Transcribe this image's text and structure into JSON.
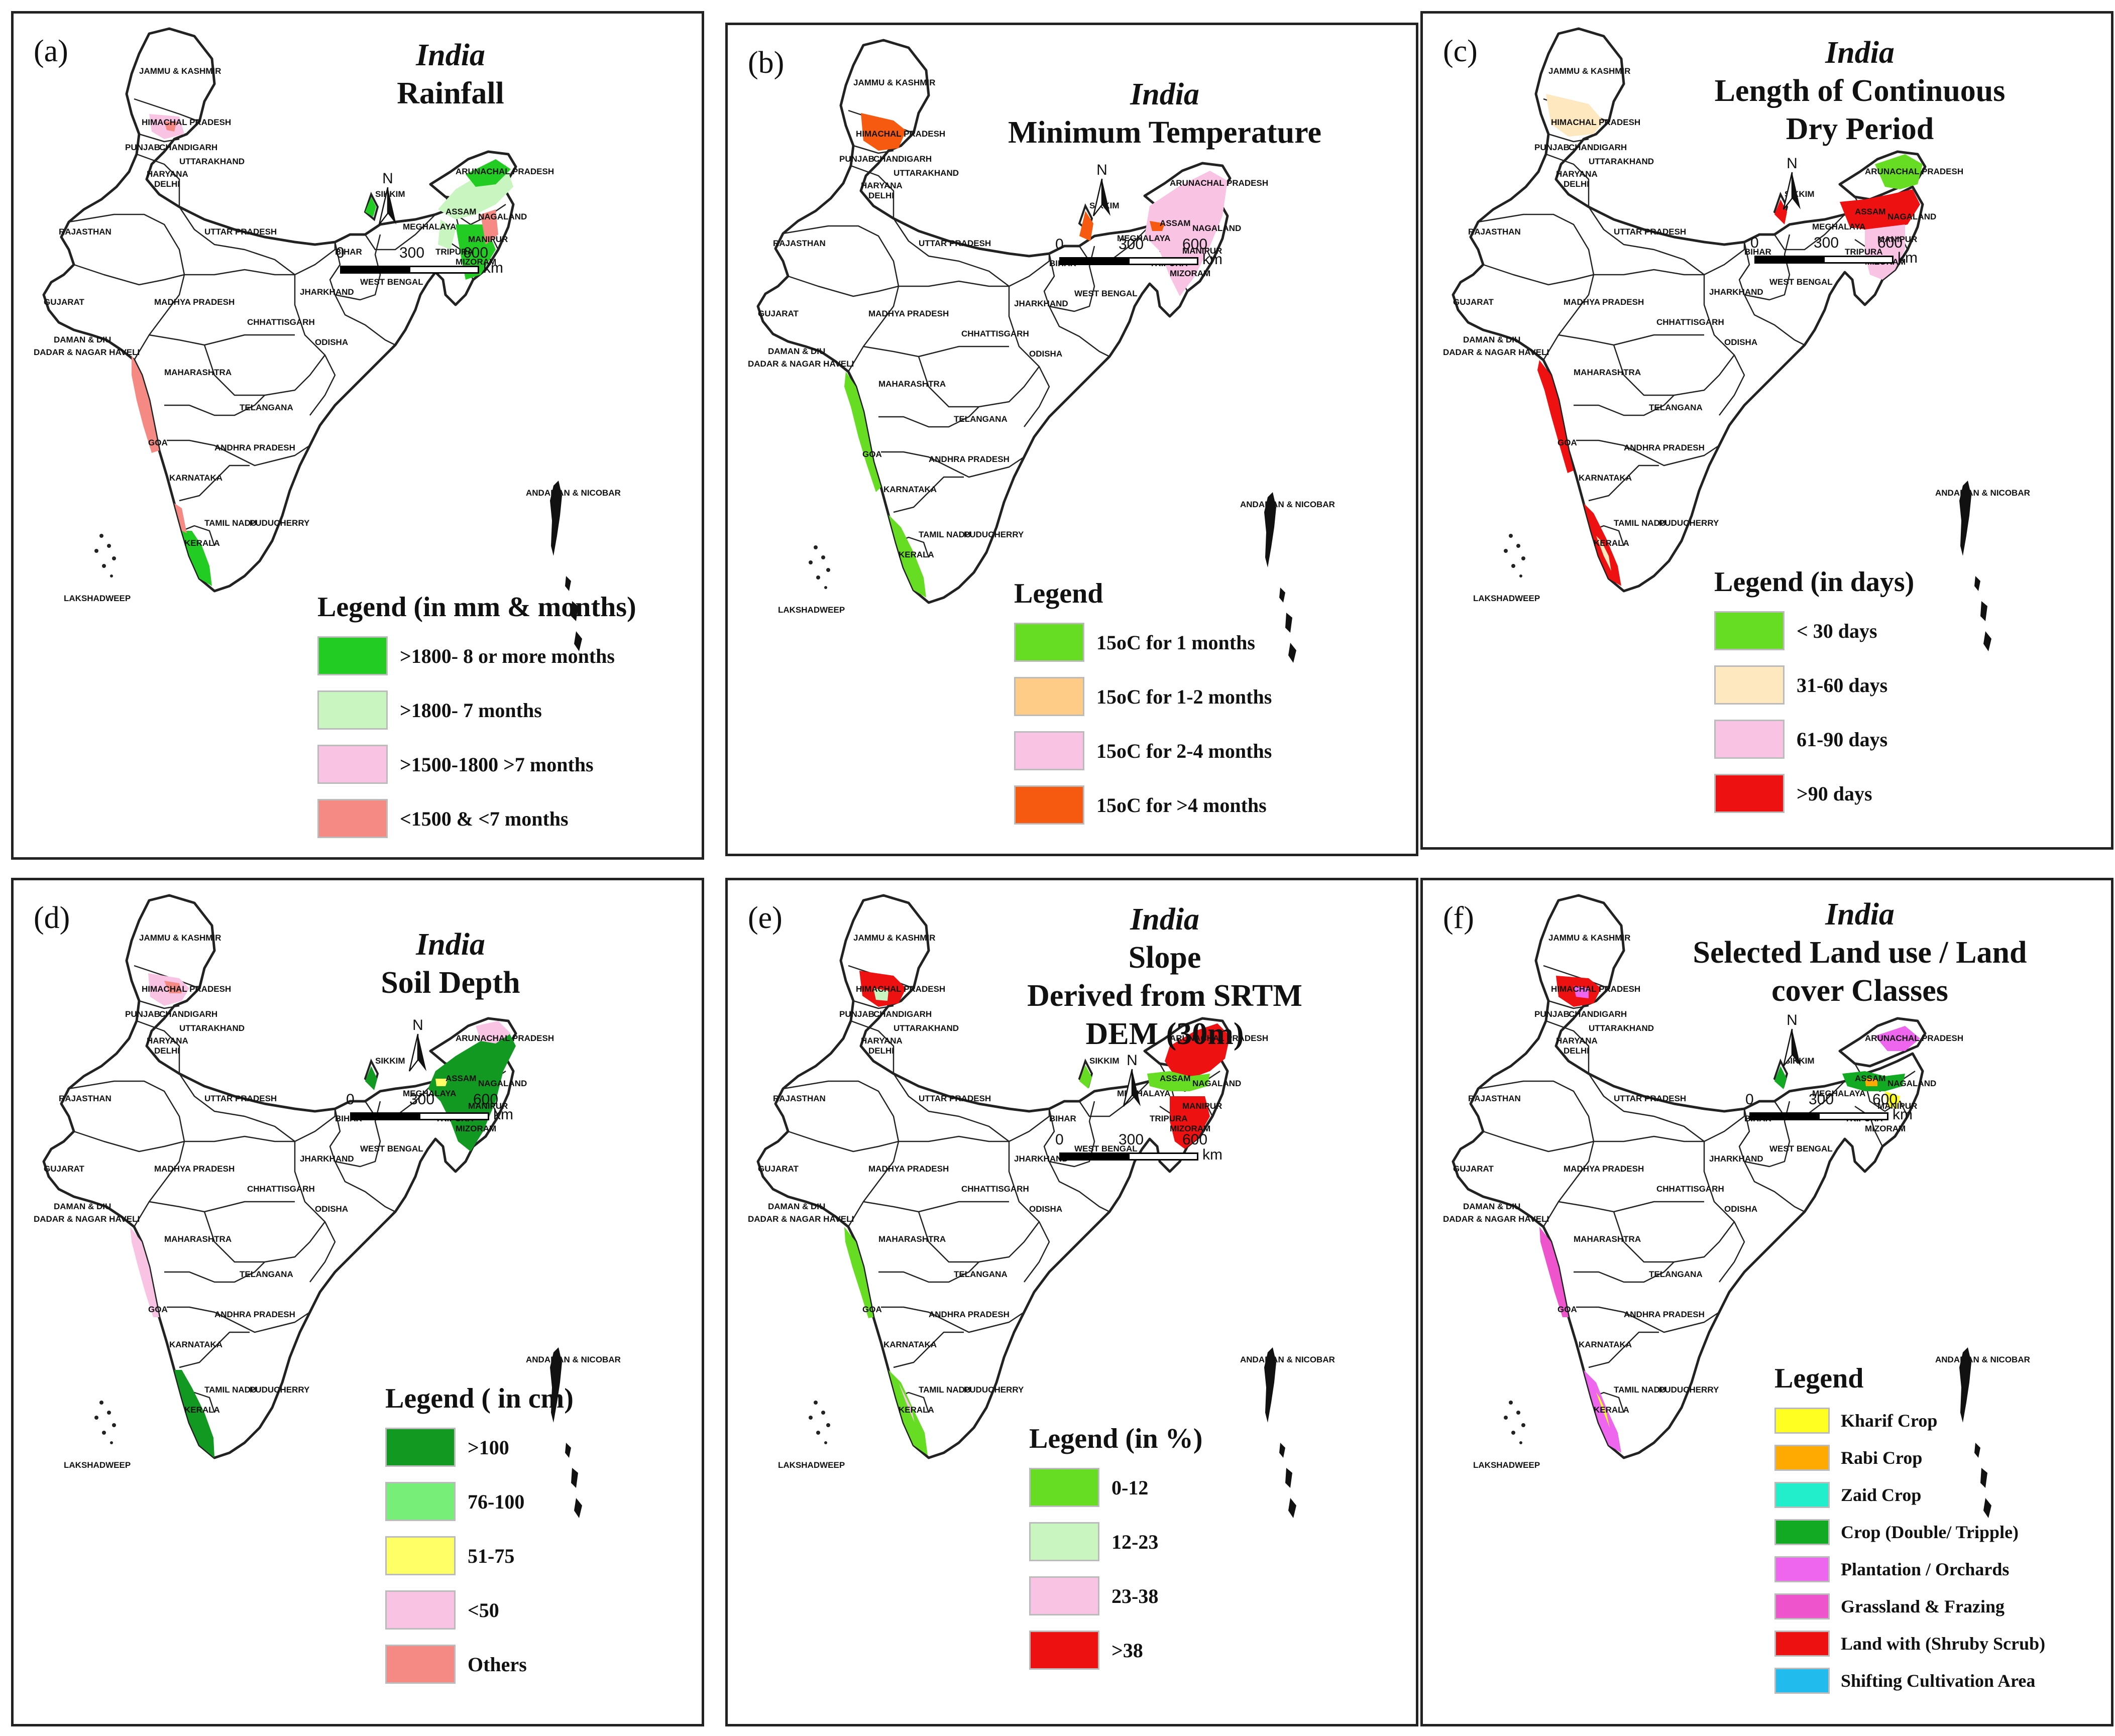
{
  "figure": {
    "scale_labels": {
      "zero": "0",
      "mid": "300",
      "max": "600",
      "unit": "km"
    },
    "north_label": "N",
    "state_labels": {
      "jk": "JAMMU & KASHMIR",
      "hp": "HIMACHAL PRADESH",
      "pb": "PUNJAB",
      "chd": "CHANDIGARH",
      "uk": "UTTARAKHAND",
      "hr": "HARYANA",
      "dl": "DELHI",
      "rj": "RAJASTHAN",
      "up": "UTTAR PRADESH",
      "bh": "BIHAR",
      "sk": "SIKKIM",
      "ar": "ARUNACHAL PRADESH",
      "as": "ASSAM",
      "nl": "NAGALAND",
      "ml": "MEGHALAYA",
      "mn": "MANIPUR",
      "tr": "TRIPURA",
      "mz": "MIZORAM",
      "wb": "WEST BENGAL",
      "jh": "JHARKHAND",
      "gj": "GUJARAT",
      "mp": "MADHYA PRADESH",
      "cg": "CHHATTISGARH",
      "od": "ODISHA",
      "dd": "DAMAN & DIU",
      "dnh": "DADAR & NAGAR HAVELI",
      "mh": "MAHARASHTRA",
      "tg": "TELANGANA",
      "ap": "ANDHRA PRADESH",
      "ka": "KARNATAKA",
      "tn": "TAMIL NADU",
      "py": "PUDUCHERRY",
      "kl": "KERALA",
      "go": "GOA",
      "ld": "LAKSHADWEEP",
      "an": "ANDAMAN & NICOBAR"
    },
    "panels": [
      {
        "id": "a",
        "label": "(a)",
        "country": "India",
        "title_lines": [
          "Rainfall"
        ],
        "legend_title": "Legend (in mm & months)",
        "legend": [
          {
            "label": ">1800- 8 or more months",
            "color": "#22cc22"
          },
          {
            "label": ">1800- 7  months",
            "color": "#c8f5c0"
          },
          {
            "label": ">1500-1800 >7  months",
            "color": "#f9c4e4"
          },
          {
            "label": "<1500 & <7 months",
            "color": "#f58a84"
          }
        ]
      },
      {
        "id": "b",
        "label": "(b)",
        "country": "India",
        "title_lines": [
          "Minimum Temperature"
        ],
        "legend_title": "Legend",
        "legend": [
          {
            "label": "15oC for 1 months",
            "color": "#66dd22"
          },
          {
            "label": "15oC for 1-2 months",
            "color": "#ffcc88"
          },
          {
            "label": "15oC for 2-4 months",
            "color": "#f9c4e4"
          },
          {
            "label": "15oC for >4 months",
            "color": "#f55a10"
          }
        ]
      },
      {
        "id": "c",
        "label": "(c)",
        "country": "India",
        "title_lines": [
          "Length of Continuous",
          "Dry Period"
        ],
        "legend_title": "Legend (in days)",
        "legend": [
          {
            "label": "< 30 days",
            "color": "#66dd22"
          },
          {
            "label": "31-60 days",
            "color": "#fde8c0"
          },
          {
            "label": "61-90 days",
            "color": "#f9c4e4"
          },
          {
            "label": ">90 days",
            "color": "#ee1111"
          }
        ]
      },
      {
        "id": "d",
        "label": "(d)",
        "country": "India",
        "title_lines": [
          "Soil Depth"
        ],
        "legend_title": "Legend ( in cm)",
        "legend": [
          {
            "label": ">100",
            "color": "#119922"
          },
          {
            "label": "76-100",
            "color": "#77ee77"
          },
          {
            "label": "51-75",
            "color": "#ffff66"
          },
          {
            "label": "<50",
            "color": "#f9c4e4"
          },
          {
            "label": "Others",
            "color": "#f58a84"
          }
        ]
      },
      {
        "id": "e",
        "label": "(e)",
        "country": "India",
        "title_lines": [
          "Slope",
          "Derived from SRTM",
          "DEM (30m)"
        ],
        "legend_title": "Legend (in %)",
        "legend": [
          {
            "label": "0-12",
            "color": "#66dd22"
          },
          {
            "label": "12-23",
            "color": "#c8f5c0"
          },
          {
            "label": "23-38",
            "color": "#f9c4e4"
          },
          {
            "label": ">38",
            "color": "#ee1111"
          }
        ]
      },
      {
        "id": "f",
        "label": "(f)",
        "country": "India",
        "title_lines": [
          "Selected Land use / Land",
          "cover Classes"
        ],
        "legend_title": "Legend",
        "legend": [
          {
            "label": "Kharif Crop",
            "color": "#ffff22"
          },
          {
            "label": "Rabi Crop",
            "color": "#ffaa00"
          },
          {
            "label": "Zaid Crop",
            "color": "#22eecc"
          },
          {
            "label": "Crop (Double/ Tripple)",
            "color": "#11aa22"
          },
          {
            "label": "Plantation / Orchards",
            "color": "#ee66ee"
          },
          {
            "label": "Grassland & Frazing",
            "color": "#ee55cc"
          },
          {
            "label": "Land with (Shruby Scrub)",
            "color": "#ee1111"
          },
          {
            "label": "Shifting Cultivation Area",
            "color": "#22bbee"
          }
        ]
      }
    ]
  }
}
